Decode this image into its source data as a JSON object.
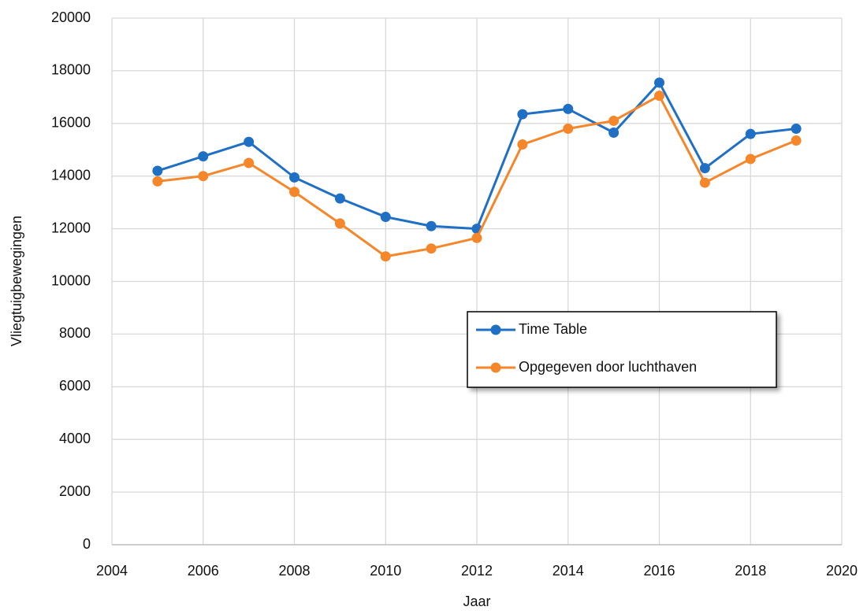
{
  "chart_data": {
    "type": "line",
    "xlabel": "Jaar",
    "ylabel": "Vliegtuigbewegingen",
    "x": [
      2005,
      2006,
      2007,
      2008,
      2009,
      2010,
      2011,
      2012,
      2013,
      2014,
      2015,
      2016,
      2017,
      2018,
      2019
    ],
    "series": [
      {
        "name": "Time Table",
        "color": "#1f6fc5",
        "values": [
          14200,
          14750,
          15300,
          13950,
          13150,
          12450,
          12100,
          12000,
          16350,
          16550,
          15650,
          17550,
          14300,
          15600,
          15800
        ]
      },
      {
        "name": "Opgegeven door luchthaven",
        "color": "#f5862a",
        "values": [
          13800,
          14000,
          14500,
          13400,
          12200,
          10950,
          11250,
          11650,
          15200,
          15800,
          16100,
          17050,
          13750,
          14650,
          15350
        ]
      }
    ],
    "xlim": [
      2004,
      2020
    ],
    "xticks": [
      2004,
      2006,
      2008,
      2010,
      2012,
      2014,
      2016,
      2018,
      2020
    ],
    "ylim": [
      0,
      20000
    ],
    "yticks": [
      0,
      2000,
      4000,
      6000,
      8000,
      10000,
      12000,
      14000,
      16000,
      18000,
      20000
    ],
    "grid": true
  }
}
